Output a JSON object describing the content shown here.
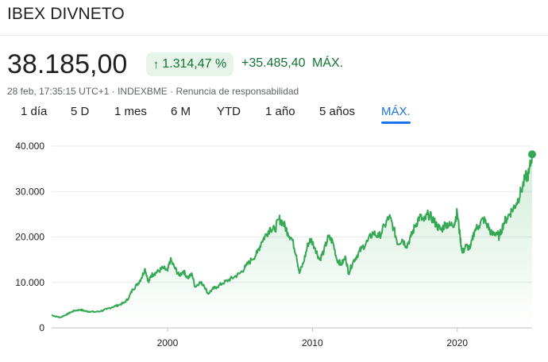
{
  "header": {
    "title": "IBEX DIVNETO"
  },
  "quote": {
    "price": "38.185,00",
    "change_arrow": "↑",
    "change_percent": "1.314,47 %",
    "change_absolute": "+35.485,40",
    "change_period": "MÁX."
  },
  "meta": {
    "timestamp": "28 feb, 17:35:15 UTC+1",
    "separator1": " · ",
    "exchange": "INDEXBME",
    "separator2": " · ",
    "disclaimer": "Renuncia de responsabilidad"
  },
  "tabs": [
    {
      "label": "1 día"
    },
    {
      "label": "5 D"
    },
    {
      "label": "1 mes"
    },
    {
      "label": "6 M"
    },
    {
      "label": "YTD"
    },
    {
      "label": "1 año"
    },
    {
      "label": "5 años"
    },
    {
      "label": "MÁX."
    }
  ],
  "active_tab": "MÁX.",
  "colors": {
    "line": "#34a853",
    "positive": "#137333",
    "accent": "#1a73e8"
  },
  "chart_data": {
    "type": "area",
    "title": "",
    "xlabel": "",
    "ylabel": "",
    "ylim": [
      0,
      40000
    ],
    "xlim": [
      1992.0,
      2025.17
    ],
    "yticks": [
      0,
      10000,
      20000,
      30000,
      40000
    ],
    "ytick_labels": [
      "0",
      "10.000",
      "20.000",
      "30.000",
      "40.000"
    ],
    "xticks": [
      2000,
      2010,
      2020
    ],
    "xtick_labels": [
      "2000",
      "2010",
      "2020"
    ],
    "grid": true,
    "series": [
      {
        "name": "IBEX DIVNETO",
        "x": [
          1992.0,
          1992.3,
          1992.6,
          1993.0,
          1993.3,
          1993.6,
          1994.0,
          1994.3,
          1994.6,
          1995.0,
          1995.4,
          1995.8,
          1996.2,
          1996.6,
          1997.0,
          1997.3,
          1997.6,
          1997.9,
          1998.2,
          1998.45,
          1998.7,
          1998.85,
          1999.1,
          1999.4,
          1999.7,
          2000.0,
          2000.2,
          2000.5,
          2000.8,
          2001.1,
          2001.4,
          2001.7,
          2001.9,
          2002.2,
          2002.5,
          2002.8,
          2003.1,
          2003.4,
          2003.8,
          2004.2,
          2004.6,
          2005.0,
          2005.4,
          2005.8,
          2006.2,
          2006.5,
          2006.8,
          2007.1,
          2007.4,
          2007.7,
          2008.0,
          2008.3,
          2008.6,
          2008.9,
          2009.1,
          2009.4,
          2009.7,
          2009.9,
          2010.2,
          2010.5,
          2010.8,
          2011.1,
          2011.4,
          2011.7,
          2012.0,
          2012.3,
          2012.5,
          2012.8,
          2013.1,
          2013.4,
          2013.8,
          2014.2,
          2014.6,
          2015.0,
          2015.3,
          2015.6,
          2015.9,
          2016.2,
          2016.5,
          2016.8,
          2017.1,
          2017.4,
          2017.7,
          2018.0,
          2018.3,
          2018.6,
          2018.9,
          2019.2,
          2019.5,
          2019.8,
          2020.0,
          2020.2,
          2020.35,
          2020.6,
          2020.9,
          2021.2,
          2021.5,
          2021.8,
          2022.1,
          2022.4,
          2022.7,
          2022.9,
          2023.2,
          2023.5,
          2023.8,
          2024.1,
          2024.4,
          2024.7,
          2024.95,
          2025.17
        ],
        "values": [
          2800,
          2500,
          2300,
          2900,
          3400,
          3800,
          4000,
          3700,
          3600,
          3500,
          3700,
          4100,
          4600,
          5000,
          5500,
          6500,
          8500,
          9500,
          11000,
          13000,
          10000,
          11500,
          12000,
          12500,
          13200,
          12500,
          15000,
          13200,
          11500,
          12500,
          11000,
          11800,
          9000,
          10000,
          9500,
          7500,
          8500,
          9000,
          9800,
          10500,
          11200,
          12000,
          13500,
          15000,
          16500,
          19000,
          20500,
          22000,
          21500,
          24000,
          23000,
          21000,
          19500,
          16000,
          12000,
          14500,
          18500,
          19500,
          17500,
          15000,
          17000,
          20000,
          19000,
          15000,
          14000,
          15500,
          12000,
          14500,
          16000,
          17500,
          19000,
          21000,
          20000,
          22500,
          24500,
          22000,
          18500,
          19500,
          18000,
          20000,
          22500,
          24500,
          23500,
          25000,
          24000,
          22500,
          21500,
          23000,
          22500,
          23000,
          25500,
          20000,
          16500,
          18000,
          17500,
          21500,
          22500,
          24000,
          22500,
          20500,
          21000,
          20000,
          23000,
          24500,
          26000,
          27500,
          30000,
          33000,
          34000,
          38185
        ]
      }
    ]
  }
}
